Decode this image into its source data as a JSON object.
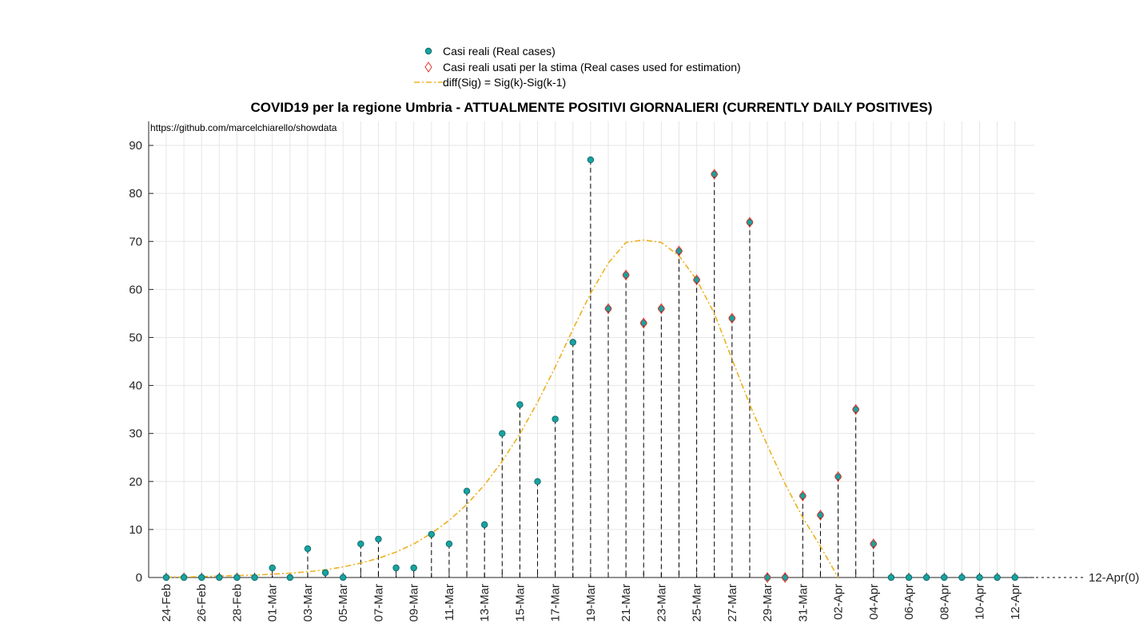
{
  "chart_data": {
    "type": "scatter",
    "title": "COVID19 per la regione Umbria - ATTUALMENTE POSITIVI GIORNALIERI (CURRENTLY DAILY POSITIVES)",
    "annotation": "https://github.com/marcelchiarello/showdata",
    "end_marker_label": "12-Apr(0)",
    "xlabel": "",
    "ylabel": "",
    "ylim": [
      0,
      95
    ],
    "yticks": [
      0,
      10,
      20,
      30,
      40,
      50,
      60,
      70,
      80,
      90
    ],
    "grid": true,
    "legend_position": "top-center",
    "categories": [
      "24-Feb",
      "25-Feb",
      "26-Feb",
      "27-Feb",
      "28-Feb",
      "29-Feb",
      "01-Mar",
      "02-Mar",
      "03-Mar",
      "04-Mar",
      "05-Mar",
      "06-Mar",
      "07-Mar",
      "08-Mar",
      "09-Mar",
      "10-Mar",
      "11-Mar",
      "12-Mar",
      "13-Mar",
      "14-Mar",
      "15-Mar",
      "16-Mar",
      "17-Mar",
      "18-Mar",
      "19-Mar",
      "20-Mar",
      "21-Mar",
      "22-Mar",
      "23-Mar",
      "24-Mar",
      "25-Mar",
      "26-Mar",
      "27-Mar",
      "28-Mar",
      "29-Mar",
      "30-Mar",
      "31-Mar",
      "01-Apr",
      "02-Apr",
      "03-Apr",
      "04-Apr",
      "05-Apr",
      "06-Apr",
      "07-Apr",
      "08-Apr",
      "09-Apr",
      "10-Apr",
      "11-Apr",
      "12-Apr"
    ],
    "xtick_labels": [
      "24-Feb",
      "26-Feb",
      "28-Feb",
      "01-Mar",
      "03-Mar",
      "05-Mar",
      "07-Mar",
      "09-Mar",
      "11-Mar",
      "13-Mar",
      "15-Mar",
      "17-Mar",
      "19-Mar",
      "21-Mar",
      "23-Mar",
      "25-Mar",
      "27-Mar",
      "29-Mar",
      "31-Mar",
      "02-Apr",
      "04-Apr",
      "06-Apr",
      "08-Apr",
      "10-Apr",
      "12-Apr"
    ],
    "series": [
      {
        "name": "Casi reali (Real cases)",
        "marker": "circle",
        "color": "#17a2a0",
        "values": [
          0,
          0,
          0,
          0,
          0,
          0,
          2,
          0,
          6,
          1,
          0,
          7,
          8,
          2,
          2,
          9,
          7,
          18,
          11,
          30,
          36,
          20,
          33,
          49,
          87,
          56,
          63,
          53,
          56,
          68,
          62,
          84,
          54,
          74,
          0,
          0,
          17,
          13,
          21,
          35,
          7,
          0,
          0,
          0,
          0,
          0,
          0,
          0,
          0
        ]
      },
      {
        "name": "Casi reali usati per la stima (Real cases used for estimation)",
        "marker": "diamond",
        "color": "#e8332a",
        "start_index": 25,
        "values": [
          56,
          63,
          53,
          56,
          68,
          62,
          84,
          54,
          74,
          0,
          0,
          17,
          13,
          21,
          35,
          7
        ]
      },
      {
        "name": "diff(Sig) = Sig(k)-Sig(k-1)",
        "line_style": "dash-dot",
        "color": "#edb120",
        "values": [
          0.1,
          0.1,
          0.2,
          0.3,
          0.4,
          0.5,
          0.7,
          0.9,
          1.2,
          1.6,
          2.2,
          3.0,
          4.0,
          5.3,
          7.0,
          9.2,
          11.9,
          15.2,
          19.3,
          24.2,
          29.9,
          36.5,
          43.8,
          51.7,
          59.2,
          65.5,
          69.8,
          70.3,
          69.8,
          67.0,
          62.0,
          55.0,
          45.5,
          36.0,
          27.5,
          19.5,
          12.5,
          6.5,
          0
        ]
      }
    ]
  }
}
